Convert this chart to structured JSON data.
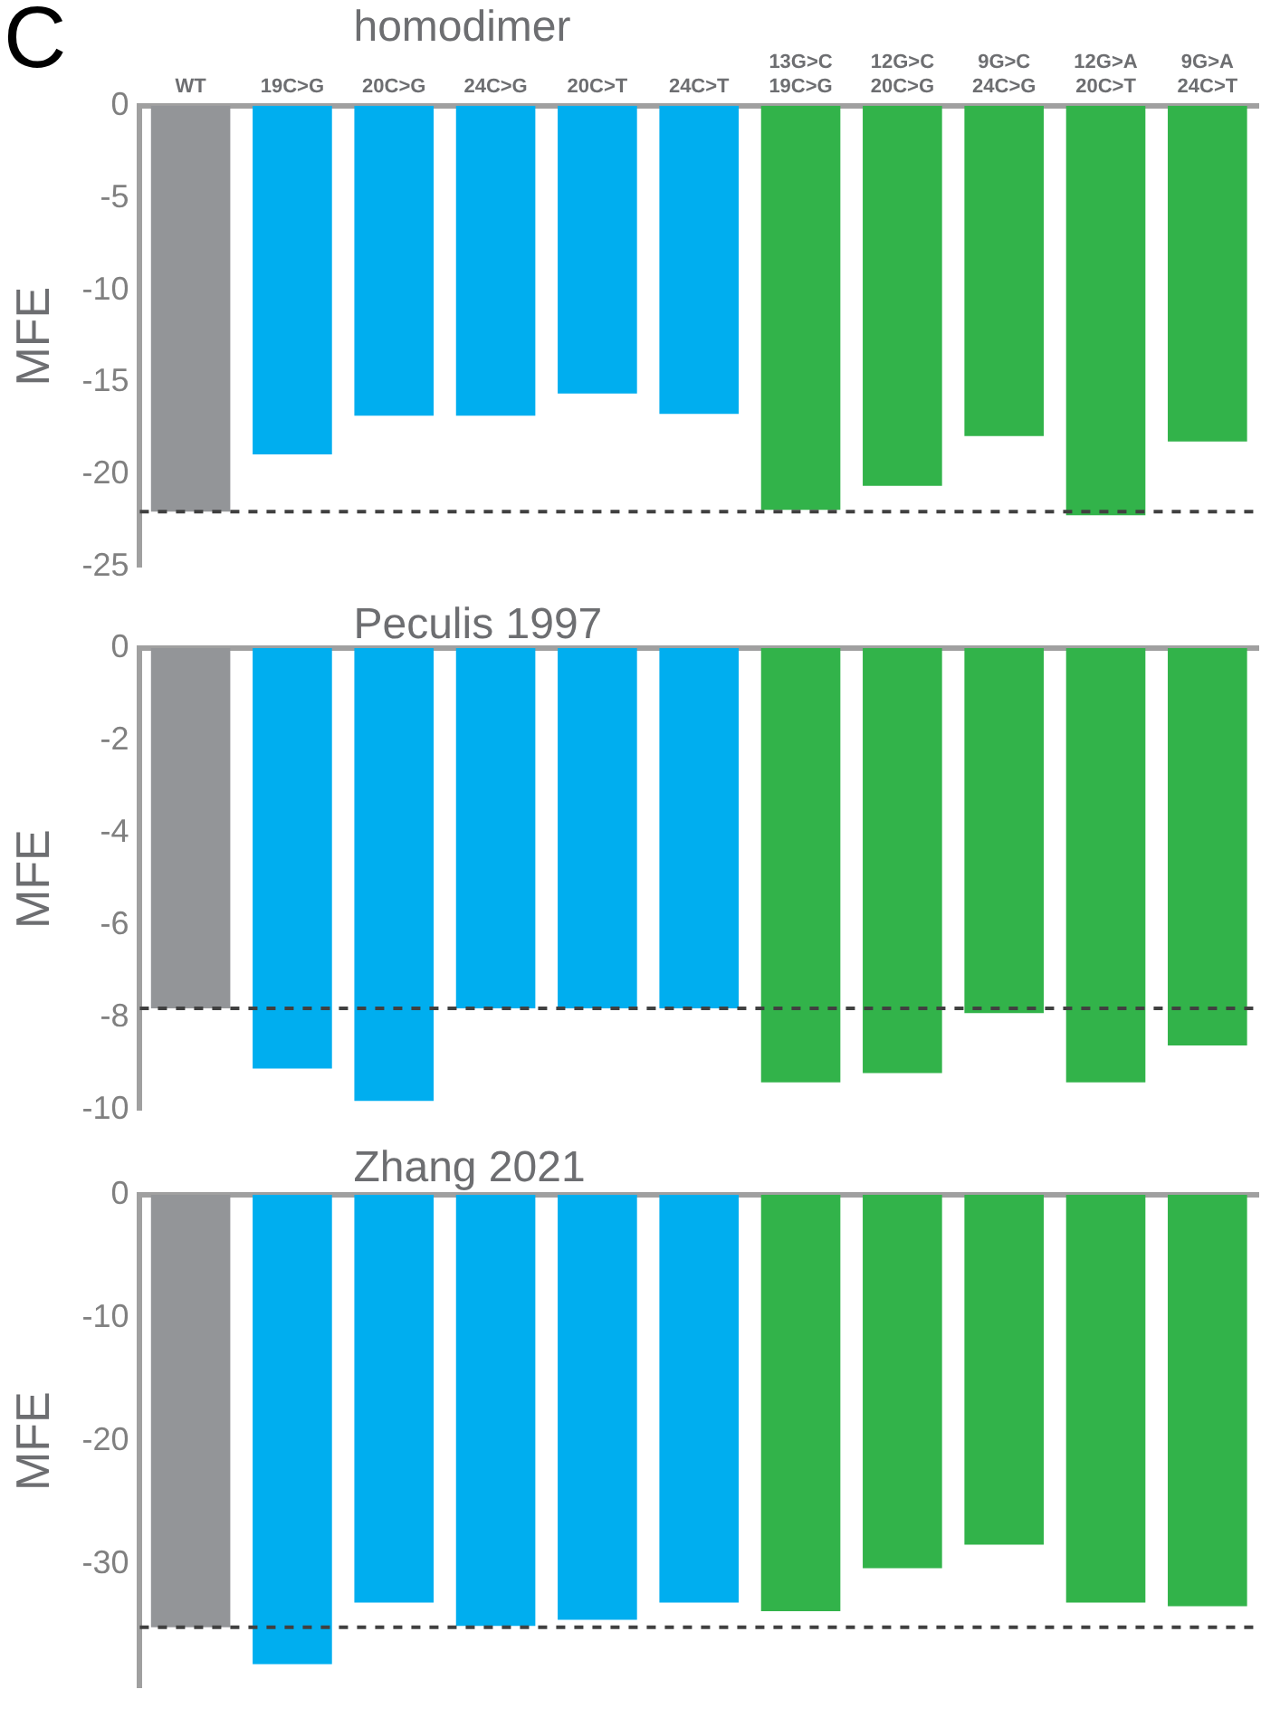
{
  "chart_data": [
    {
      "type": "bar",
      "title": "homodimer",
      "ylabel": "MFE",
      "annotations": [
        "C"
      ],
      "categories": [
        "WT",
        "19C>G",
        "20C>G",
        "24C>G",
        "20C>T",
        "24C>T",
        "13G>C\n19C>G",
        "12G>C\n20C>G",
        "9G>C\n24C>G",
        "12G>A\n20C>T",
        "9G>A\n24C>T"
      ],
      "values": [
        -22,
        -18.9,
        -16.8,
        -16.8,
        -15.6,
        -16.7,
        -21.9,
        -20.6,
        -17.9,
        -22.2,
        -18.2
      ],
      "colors": [
        "#939598",
        "#00aeef",
        "#00aeef",
        "#00aeef",
        "#00aeef",
        "#00aeef",
        "#32b34a",
        "#32b34a",
        "#32b34a",
        "#32b34a",
        "#32b34a"
      ],
      "ylim": [
        -25,
        0
      ],
      "yticks": [
        0,
        -5,
        -10,
        -15,
        -20,
        -25
      ],
      "ref_lines": [
        {
          "axis": "y",
          "value": -22,
          "color": "#404040",
          "line_style": "dashed"
        }
      ],
      "grid": false,
      "legend": false
    },
    {
      "type": "bar",
      "title": "Peculis 1997",
      "ylabel": "MFE",
      "categories": [
        null,
        null,
        null,
        null,
        null,
        null,
        null,
        null,
        null,
        null,
        null
      ],
      "values": [
        -7.8,
        -9.1,
        -9.8,
        -7.8,
        -7.8,
        -7.8,
        -9.4,
        -9.2,
        -7.9,
        -9.4,
        -8.6
      ],
      "colors": [
        "#939598",
        "#00aeef",
        "#00aeef",
        "#00aeef",
        "#00aeef",
        "#00aeef",
        "#32b34a",
        "#32b34a",
        "#32b34a",
        "#32b34a",
        "#32b34a"
      ],
      "ylim": [
        -10,
        0
      ],
      "yticks": [
        0,
        -2,
        -4,
        -6,
        -8,
        -10
      ],
      "ref_lines": [
        {
          "axis": "y",
          "value": -7.8,
          "color": "#404040",
          "line_style": "dashed"
        }
      ],
      "grid": false,
      "legend": false,
      "tick_labels": "y"
    },
    {
      "type": "bar",
      "title": "Zhang 2021",
      "ylabel": "MFE",
      "categories": [
        null,
        null,
        null,
        null,
        null,
        null,
        null,
        null,
        null,
        null,
        null
      ],
      "values": [
        -35.1,
        -38.1,
        -33.1,
        -35.0,
        -34.5,
        -33.1,
        -33.8,
        -30.3,
        -28.4,
        -33.1,
        -33.4
      ],
      "colors": [
        "#939598",
        "#00aeef",
        "#00aeef",
        "#00aeef",
        "#00aeef",
        "#00aeef",
        "#32b34a",
        "#32b34a",
        "#32b34a",
        "#32b34a",
        "#32b34a"
      ],
      "ylim": [
        -40,
        0
      ],
      "yticks": [
        0,
        -10,
        -20,
        -30
      ],
      "ref_lines": [
        {
          "axis": "y",
          "value": -35.1,
          "color": "#404040",
          "line_style": "dashed"
        }
      ],
      "grid": false,
      "legend": false,
      "tick_labels": "y"
    }
  ]
}
